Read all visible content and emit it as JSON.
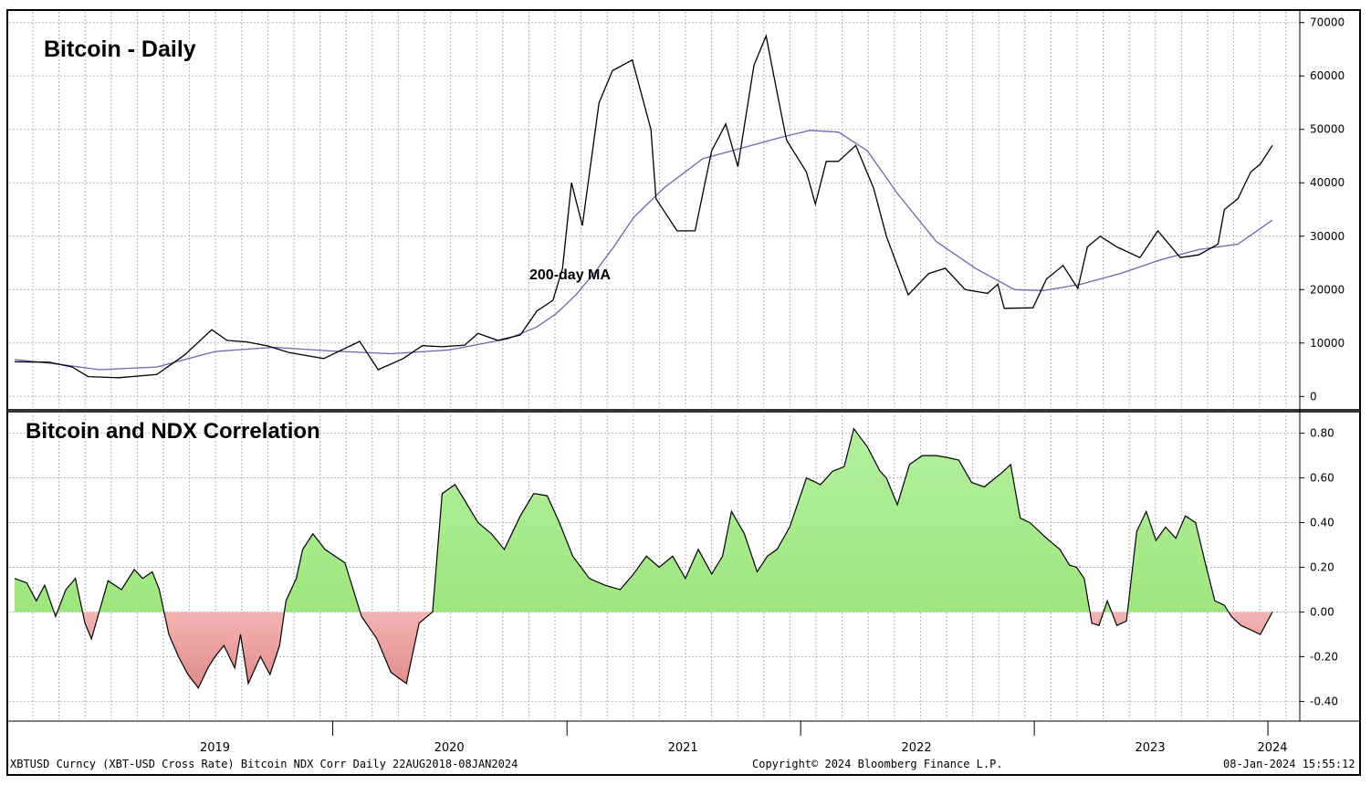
{
  "chart_data": [
    {
      "type": "line",
      "title": "Bitcoin - Daily",
      "annotation": "200-day MA",
      "ylim": [
        -2000,
        72000
      ],
      "yticks": [
        0,
        10000,
        20000,
        30000,
        40000,
        50000,
        60000,
        70000
      ],
      "ytick_labels": [
        "0",
        "10000",
        "20000",
        "30000",
        "40000",
        "50000",
        "60000",
        "70000"
      ],
      "grid": true,
      "colors": {
        "price": "#000000",
        "ma": "#6e64b4"
      },
      "series": [
        {
          "key": "price",
          "x": [
            "2018-08-22",
            "2018-10-15",
            "2018-11-20",
            "2018-12-15",
            "2019-02-01",
            "2019-04-01",
            "2019-05-15",
            "2019-06-26",
            "2019-07-20",
            "2019-08-20",
            "2019-09-20",
            "2019-10-25",
            "2019-12-18",
            "2020-02-12",
            "2020-03-12",
            "2020-04-20",
            "2020-05-20",
            "2020-06-20",
            "2020-07-25",
            "2020-08-15",
            "2020-09-15",
            "2020-10-20",
            "2020-11-15",
            "2020-12-10",
            "2020-12-25",
            "2021-01-08",
            "2021-01-25",
            "2021-02-20",
            "2021-03-13",
            "2021-04-13",
            "2021-05-12",
            "2021-05-20",
            "2021-06-22",
            "2021-07-20",
            "2021-08-15",
            "2021-09-06",
            "2021-09-25",
            "2021-10-20",
            "2021-11-08",
            "2021-11-25",
            "2021-12-10",
            "2022-01-10",
            "2022-01-24",
            "2022-02-10",
            "2022-03-01",
            "2022-03-28",
            "2022-04-25",
            "2022-05-15",
            "2022-06-18",
            "2022-07-20",
            "2022-08-15",
            "2022-09-15",
            "2022-10-20",
            "2022-11-05",
            "2022-11-15",
            "2022-12-30",
            "2023-01-20",
            "2023-02-15",
            "2023-03-10",
            "2023-03-25",
            "2023-04-14",
            "2023-05-10",
            "2023-06-15",
            "2023-07-13",
            "2023-08-17",
            "2023-09-15",
            "2023-10-15",
            "2023-10-25",
            "2023-11-15",
            "2023-12-05",
            "2023-12-20",
            "2024-01-08"
          ],
          "y": [
            6500,
            6400,
            5500,
            3700,
            3500,
            4100,
            7800,
            12500,
            10500,
            10200,
            9500,
            8200,
            7100,
            10300,
            5000,
            7100,
            9500,
            9300,
            9600,
            11800,
            10500,
            11500,
            16000,
            18000,
            24000,
            40000,
            32000,
            55000,
            61000,
            63000,
            50000,
            37000,
            31000,
            31000,
            46000,
            51000,
            43000,
            62000,
            67500,
            57000,
            48000,
            42000,
            36000,
            44000,
            44000,
            47000,
            39000,
            30000,
            19000,
            23000,
            24000,
            20000,
            19300,
            21000,
            16500,
            16600,
            22000,
            24500,
            20200,
            28000,
            30000,
            28000,
            26000,
            31000,
            26000,
            26500,
            28500,
            35000,
            37000,
            42000,
            43500,
            47000
          ]
        },
        {
          "key": "ma",
          "x": [
            "2018-08-22",
            "2018-11-01",
            "2019-01-01",
            "2019-04-01",
            "2019-07-01",
            "2019-10-01",
            "2020-01-01",
            "2020-04-01",
            "2020-07-01",
            "2020-10-01",
            "2020-11-15",
            "2020-12-15",
            "2021-01-15",
            "2021-02-15",
            "2021-03-15",
            "2021-04-15",
            "2021-06-01",
            "2021-08-01",
            "2021-10-01",
            "2021-12-01",
            "2022-01-15",
            "2022-03-01",
            "2022-04-15",
            "2022-06-01",
            "2022-08-01",
            "2022-10-01",
            "2022-12-01",
            "2023-01-15",
            "2023-03-15",
            "2023-05-15",
            "2023-07-15",
            "2023-09-15",
            "2023-11-15",
            "2024-01-08"
          ],
          "y": [
            6900,
            6000,
            5000,
            5500,
            8400,
            9200,
            8500,
            8000,
            8700,
            10800,
            13000,
            15500,
            19000,
            23500,
            28000,
            33500,
            39000,
            44500,
            46500,
            48500,
            49800,
            49500,
            46000,
            38000,
            29000,
            24000,
            20000,
            19800,
            21000,
            23000,
            25500,
            27500,
            28500,
            33000
          ]
        }
      ]
    },
    {
      "type": "area",
      "title": "Bitcoin and NDX Correlation",
      "ylim": [
        -0.48,
        0.88
      ],
      "yticks": [
        -0.4,
        -0.2,
        0,
        0.2,
        0.4,
        0.6,
        0.8
      ],
      "ytick_labels": [
        "-0.40",
        "-0.20",
        "0.00",
        "0.20",
        "0.40",
        "0.60",
        "0.80"
      ],
      "grid": true,
      "colors": {
        "line": "#000000",
        "positive_top": "#b4f0a0",
        "positive_bottom": "#9ee67e",
        "negative_top": "#f4b4b4",
        "negative_bottom": "#e08a8a"
      },
      "x": [
        "2018-08-22",
        "2018-09-10",
        "2018-09-25",
        "2018-10-08",
        "2018-10-25",
        "2018-11-10",
        "2018-11-25",
        "2018-12-10",
        "2018-12-20",
        "2019-01-15",
        "2019-02-05",
        "2019-02-25",
        "2019-03-10",
        "2019-03-25",
        "2019-04-05",
        "2019-04-20",
        "2019-05-05",
        "2019-05-20",
        "2019-06-05",
        "2019-06-20",
        "2019-07-01",
        "2019-07-15",
        "2019-08-01",
        "2019-08-10",
        "2019-08-22",
        "2019-09-10",
        "2019-09-25",
        "2019-10-10",
        "2019-10-20",
        "2019-11-05",
        "2019-11-15",
        "2019-12-01",
        "2019-12-20",
        "2020-01-20",
        "2020-02-15",
        "2020-03-10",
        "2020-04-01",
        "2020-04-25",
        "2020-05-15",
        "2020-06-05",
        "2020-06-20",
        "2020-07-10",
        "2020-07-25",
        "2020-08-15",
        "2020-09-05",
        "2020-09-25",
        "2020-10-20",
        "2020-11-10",
        "2020-12-01",
        "2020-12-20",
        "2021-01-10",
        "2021-02-05",
        "2021-03-01",
        "2021-03-25",
        "2021-04-15",
        "2021-05-05",
        "2021-05-25",
        "2021-06-15",
        "2021-07-05",
        "2021-07-25",
        "2021-08-15",
        "2021-09-01",
        "2021-09-15",
        "2021-10-05",
        "2021-10-25",
        "2021-11-10",
        "2021-11-25",
        "2021-12-15",
        "2022-01-10",
        "2022-02-01",
        "2022-02-20",
        "2022-03-10",
        "2022-03-25",
        "2022-04-15",
        "2022-05-05",
        "2022-05-15",
        "2022-06-01",
        "2022-06-20",
        "2022-07-10",
        "2022-08-01",
        "2022-08-20",
        "2022-09-05",
        "2022-09-25",
        "2022-10-15",
        "2022-11-01",
        "2022-11-10",
        "2022-11-25",
        "2022-12-10",
        "2022-12-25",
        "2023-01-20",
        "2023-02-10",
        "2023-02-25",
        "2023-03-08",
        "2023-03-20",
        "2023-04-01",
        "2023-04-12",
        "2023-04-25",
        "2023-05-10",
        "2023-05-25",
        "2023-06-10",
        "2023-06-25",
        "2023-07-10",
        "2023-07-25",
        "2023-08-10",
        "2023-08-25",
        "2023-09-10",
        "2023-09-25",
        "2023-10-10",
        "2023-10-25",
        "2023-11-05",
        "2023-11-20",
        "2023-12-05",
        "2023-12-20",
        "2024-01-08"
      ],
      "y": [
        0.15,
        0.13,
        0.05,
        0.12,
        -0.02,
        0.1,
        0.15,
        -0.05,
        -0.12,
        0.14,
        0.1,
        0.19,
        0.15,
        0.18,
        0.1,
        -0.1,
        -0.2,
        -0.28,
        -0.34,
        -0.25,
        -0.2,
        -0.15,
        -0.25,
        -0.1,
        -0.32,
        -0.2,
        -0.28,
        -0.15,
        0.05,
        0.15,
        0.28,
        0.35,
        0.28,
        0.22,
        -0.02,
        -0.12,
        -0.27,
        -0.32,
        -0.05,
        0.0,
        0.53,
        0.57,
        0.5,
        0.4,
        0.35,
        0.28,
        0.43,
        0.53,
        0.52,
        0.4,
        0.25,
        0.15,
        0.12,
        0.1,
        0.17,
        0.25,
        0.2,
        0.25,
        0.15,
        0.28,
        0.17,
        0.25,
        0.45,
        0.35,
        0.18,
        0.25,
        0.28,
        0.38,
        0.6,
        0.57,
        0.63,
        0.65,
        0.82,
        0.74,
        0.63,
        0.6,
        0.48,
        0.66,
        0.7,
        0.7,
        0.69,
        0.68,
        0.58,
        0.56,
        0.6,
        0.62,
        0.66,
        0.42,
        0.4,
        0.33,
        0.28,
        0.21,
        0.2,
        0.15,
        -0.05,
        -0.06,
        0.05,
        -0.06,
        -0.04,
        0.36,
        0.45,
        0.32,
        0.38,
        0.33,
        0.43,
        0.4,
        0.22,
        0.05,
        0.03,
        -0.02,
        -0.06,
        -0.08,
        -0.1,
        0.0
      ]
    }
  ],
  "x_axis": {
    "year_labels": [
      {
        "label": "2019",
        "date": "2019-07-01"
      },
      {
        "label": "2020",
        "date": "2020-07-01"
      },
      {
        "label": "2021",
        "date": "2021-07-01"
      },
      {
        "label": "2022",
        "date": "2022-07-01"
      },
      {
        "label": "2023",
        "date": "2023-07-01"
      },
      {
        "label": "2024",
        "date": "2024-01-08"
      }
    ],
    "year_boundaries": [
      "2020-01-01",
      "2021-01-01",
      "2022-01-01",
      "2023-01-01",
      "2024-01-01"
    ]
  },
  "footer": {
    "left": "XBTUSD Curncy (XBT-USD Cross Rate) Bitcoin NDX Corr  Daily 22AUG2018-08JAN2024",
    "center": "Copyright© 2024 Bloomberg Finance L.P.",
    "right": "08-Jan-2024 15:55:12"
  }
}
